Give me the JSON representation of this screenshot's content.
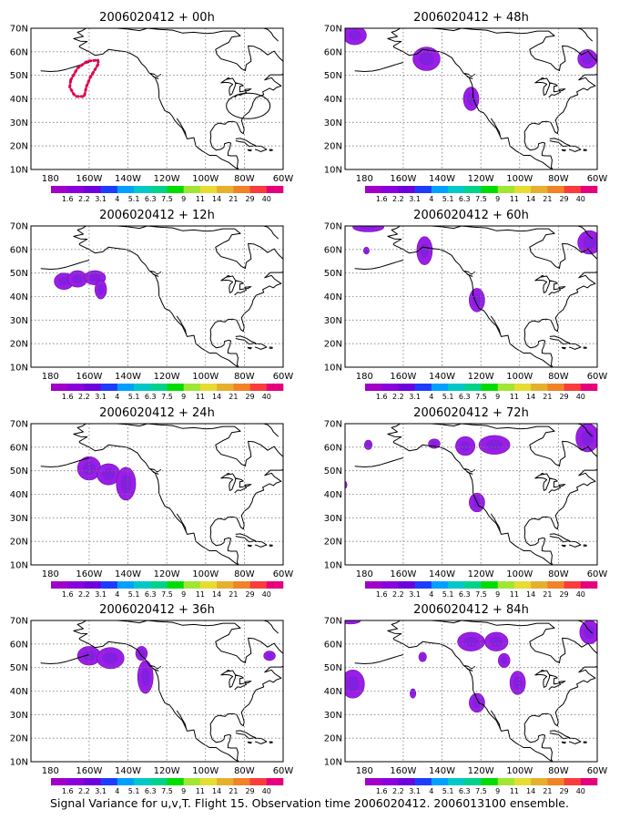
{
  "panels": [
    {
      "title": "2006020412 + 00h",
      "col": 0,
      "row": 0,
      "track": true,
      "blobs": []
    },
    {
      "title": "2006020412 + 12h",
      "col": 0,
      "row": 1,
      "track": false,
      "blobs": [
        {
          "lon": -173,
          "lat": 46.5,
          "rx": 5,
          "ry": 3.5
        },
        {
          "lon": -166,
          "lat": 47.5,
          "rx": 5,
          "ry": 3.5
        },
        {
          "lon": -157,
          "lat": 48,
          "rx": 5.5,
          "ry": 3
        },
        {
          "lon": -154,
          "lat": 43,
          "rx": 3,
          "ry": 4
        }
      ]
    },
    {
      "title": "2006020412 + 24h",
      "col": 0,
      "row": 2,
      "track": false,
      "blobs": [
        {
          "lon": -160,
          "lat": 51,
          "rx": 6,
          "ry": 5
        },
        {
          "lon": -150,
          "lat": 48.5,
          "rx": 6,
          "ry": 4.5
        },
        {
          "lon": -141,
          "lat": 44.5,
          "rx": 5,
          "ry": 7
        }
      ]
    },
    {
      "title": "2006020412 + 36h",
      "col": 0,
      "row": 3,
      "track": false,
      "blobs": [
        {
          "lon": -160,
          "lat": 55,
          "rx": 6,
          "ry": 4
        },
        {
          "lon": -149,
          "lat": 54,
          "rx": 7,
          "ry": 4.5
        },
        {
          "lon": -133,
          "lat": 56,
          "rx": 3,
          "ry": 3
        },
        {
          "lon": -131,
          "lat": 46,
          "rx": 4,
          "ry": 7
        },
        {
          "lon": -67,
          "lat": 55,
          "rx": 3,
          "ry": 2
        }
      ]
    },
    {
      "title": "2006020412 + 48h",
      "col": 1,
      "row": 0,
      "track": false,
      "blobs": [
        {
          "lon": -185,
          "lat": 67,
          "rx": 6,
          "ry": 4
        },
        {
          "lon": -148,
          "lat": 57,
          "rx": 7,
          "ry": 5
        },
        {
          "lon": -125,
          "lat": 40,
          "rx": 4,
          "ry": 5
        },
        {
          "lon": -65,
          "lat": 57,
          "rx": 5,
          "ry": 4
        }
      ]
    },
    {
      "title": "2006020412 + 60h",
      "col": 1,
      "row": 1,
      "track": false,
      "blobs": [
        {
          "lon": -178,
          "lat": 69.5,
          "rx": 8,
          "ry": 2
        },
        {
          "lon": -179,
          "lat": 59.5,
          "rx": 1.5,
          "ry": 1.5
        },
        {
          "lon": -149,
          "lat": 59.5,
          "rx": 4,
          "ry": 6
        },
        {
          "lon": -122,
          "lat": 38.5,
          "rx": 4,
          "ry": 5
        },
        {
          "lon": -64,
          "lat": 63,
          "rx": 6,
          "ry": 5
        }
      ]
    },
    {
      "title": "2006020412 + 72h",
      "col": 1,
      "row": 2,
      "track": false,
      "blobs": [
        {
          "lon": -178,
          "lat": 61,
          "rx": 2,
          "ry": 2
        },
        {
          "lon": -190,
          "lat": 44,
          "rx": 1,
          "ry": 1.5
        },
        {
          "lon": -144,
          "lat": 61.5,
          "rx": 3,
          "ry": 2
        },
        {
          "lon": -128,
          "lat": 60.5,
          "rx": 5,
          "ry": 4
        },
        {
          "lon": -113,
          "lat": 61,
          "rx": 8,
          "ry": 4
        },
        {
          "lon": -122,
          "lat": 36.5,
          "rx": 4,
          "ry": 4
        },
        {
          "lon": -65,
          "lat": 64,
          "rx": 6,
          "ry": 6
        }
      ]
    },
    {
      "title": "2006020412 + 84h",
      "col": 1,
      "row": 3,
      "track": false,
      "blobs": [
        {
          "lon": -187,
          "lat": 70,
          "rx": 5,
          "ry": 1.5
        },
        {
          "lon": -186,
          "lat": 43,
          "rx": 6,
          "ry": 6
        },
        {
          "lon": -150,
          "lat": 54.5,
          "rx": 2,
          "ry": 2
        },
        {
          "lon": -155,
          "lat": 39,
          "rx": 1.5,
          "ry": 2
        },
        {
          "lon": -125,
          "lat": 61,
          "rx": 7,
          "ry": 4
        },
        {
          "lon": -112,
          "lat": 61,
          "rx": 6,
          "ry": 4
        },
        {
          "lon": -108,
          "lat": 53,
          "rx": 3,
          "ry": 3
        },
        {
          "lon": -101,
          "lat": 43.5,
          "rx": 4,
          "ry": 5
        },
        {
          "lon": -122,
          "lat": 35,
          "rx": 4,
          "ry": 4
        },
        {
          "lon": -64,
          "lat": 65,
          "rx": 5,
          "ry": 5
        }
      ]
    }
  ],
  "lon_ticks": [
    "180",
    "160W",
    "140W",
    "120W",
    "100W",
    "80W",
    "60W"
  ],
  "lat_ticks": [
    "10N",
    "20N",
    "30N",
    "40N",
    "50N",
    "60N",
    "70N"
  ],
  "colorbar": {
    "labels": [
      "1.6",
      "2.2",
      "3.1",
      "4",
      "5.1",
      "6.3",
      "7.5",
      "9",
      "11",
      "14",
      "21",
      "29",
      "40"
    ],
    "colors": [
      "#a000c8",
      "#8a00dc",
      "#6e00dc",
      "#1e3cff",
      "#00a0ff",
      "#00c8c8",
      "#00d28c",
      "#00dc00",
      "#a0e632",
      "#e6dc32",
      "#e6af2d",
      "#f08228",
      "#fa3c3c",
      "#e6007d"
    ]
  },
  "caption": "Signal Variance for u,v,T. Flight 15. Observation time 2006020412. 2006013100 ensemble."
}
